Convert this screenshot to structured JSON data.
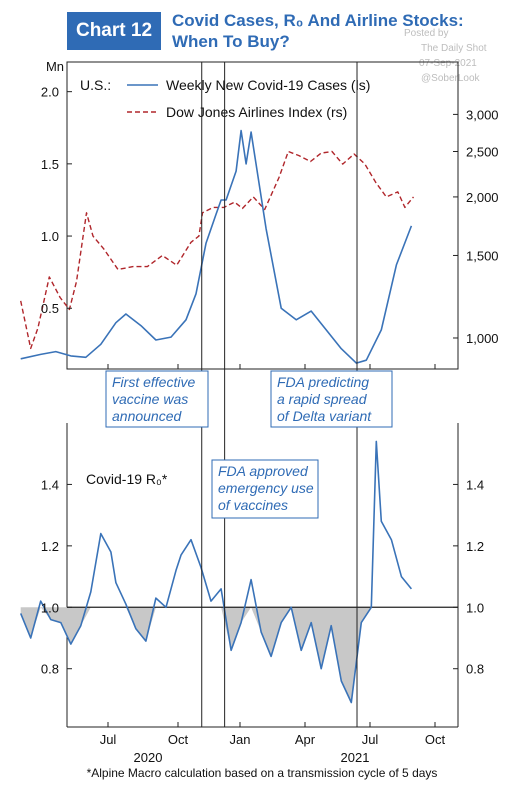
{
  "header": {
    "chart_number": "Chart 12",
    "title_line1": "Covid Cases, R₀ And Airline Stocks:",
    "title_line2": "When To Buy?"
  },
  "watermark": {
    "posted_by": "Posted by",
    "source": "The Daily Shot",
    "date": "07-Sep-2021",
    "handle": "@SoberLook"
  },
  "footnote": "*Alpine Macro calculation based on a transmission cycle of 5 days",
  "annotations": [
    {
      "id": "vaccine",
      "lines": [
        "First effective",
        "vaccine was",
        "announced"
      ],
      "date": "2020-11-09"
    },
    {
      "id": "eua",
      "lines": [
        "FDA approved",
        "emergency use",
        "of vaccines"
      ],
      "date": "2020-12-11"
    },
    {
      "id": "delta",
      "lines": [
        "FDA predicting",
        "a rapid spread",
        "of Delta variant"
      ],
      "date": "2021-06-14"
    }
  ],
  "colors": {
    "brand": "#2f6bb5",
    "cases": "#3a73b8",
    "airlines": "#b0262b",
    "ro": "#3a73b8",
    "ro_fill": "#c8c8c8"
  },
  "chart_data": [
    {
      "type": "line",
      "title": "",
      "ylabel_left": "Mn",
      "legend_prefix": "U.S.:",
      "legend_position": "top-left",
      "x_ticks": [
        "Jul",
        "Oct",
        "Jan",
        "Apr",
        "Jul",
        "Oct"
      ],
      "x_year_labels": [
        "2020",
        "2021"
      ],
      "y_left_ticks": [
        "0.5",
        "1.0",
        "1.5",
        "2.0"
      ],
      "y_left_lim": [
        0.1,
        2.15
      ],
      "y_right_ticks": [
        "1,000",
        "1,500",
        "2,000",
        "2,500",
        "3,000"
      ],
      "y_right_scale": "log",
      "y_right_lim": [
        880,
        3300
      ],
      "series": [
        {
          "name": "Weekly New Covid-19 Cases (ls)",
          "axis": "left",
          "style": "solid",
          "x": [
            "2020-03-01",
            "2020-03-29",
            "2020-04-19",
            "2020-05-10",
            "2020-05-31",
            "2020-06-21",
            "2020-07-12",
            "2020-07-26",
            "2020-08-16",
            "2020-09-06",
            "2020-09-27",
            "2020-10-18",
            "2020-11-01",
            "2020-11-15",
            "2020-11-29",
            "2020-12-06",
            "2020-12-13",
            "2020-12-27",
            "2021-01-03",
            "2021-01-10",
            "2021-01-17",
            "2021-02-07",
            "2021-02-28",
            "2021-03-21",
            "2021-04-11",
            "2021-05-02",
            "2021-05-23",
            "2021-06-13",
            "2021-06-27",
            "2021-07-18",
            "2021-08-08",
            "2021-08-22",
            "2021-08-29"
          ],
          "values": [
            0.15,
            0.18,
            0.2,
            0.17,
            0.16,
            0.25,
            0.4,
            0.46,
            0.38,
            0.28,
            0.3,
            0.42,
            0.6,
            0.95,
            1.15,
            1.25,
            1.25,
            1.45,
            1.73,
            1.5,
            1.72,
            1.05,
            0.5,
            0.42,
            0.48,
            0.35,
            0.22,
            0.12,
            0.14,
            0.35,
            0.8,
            0.98,
            1.07
          ]
        },
        {
          "name": "Dow Jones Airlines Index (rs)",
          "axis": "right",
          "style": "dashed",
          "x": [
            "2020-03-01",
            "2020-03-15",
            "2020-03-25",
            "2020-04-10",
            "2020-04-25",
            "2020-05-08",
            "2020-05-18",
            "2020-06-01",
            "2020-06-10",
            "2020-06-25",
            "2020-07-15",
            "2020-08-05",
            "2020-08-25",
            "2020-09-15",
            "2020-10-05",
            "2020-10-25",
            "2020-11-05",
            "2020-11-10",
            "2020-11-25",
            "2020-12-10",
            "2020-12-25",
            "2021-01-05",
            "2021-01-20",
            "2021-02-05",
            "2021-02-25",
            "2021-03-10",
            "2021-03-25",
            "2021-04-10",
            "2021-04-25",
            "2021-05-10",
            "2021-05-25",
            "2021-06-10",
            "2021-06-25",
            "2021-07-10",
            "2021-07-25",
            "2021-08-10",
            "2021-08-20",
            "2021-09-01"
          ],
          "values": [
            1200,
            950,
            1050,
            1350,
            1220,
            1150,
            1320,
            1850,
            1650,
            1550,
            1400,
            1420,
            1420,
            1500,
            1430,
            1600,
            1650,
            1850,
            1900,
            1900,
            1950,
            1890,
            2000,
            1880,
            2200,
            2500,
            2450,
            2380,
            2480,
            2500,
            2350,
            2470,
            2350,
            2150,
            2000,
            2050,
            1900,
            2000
          ]
        }
      ]
    },
    {
      "type": "area",
      "title": "",
      "series_label": "Covid-19 R₀*",
      "baseline": 1.0,
      "fill_below_baseline": true,
      "x_ticks": [
        "Jul",
        "Oct",
        "Jan",
        "Apr",
        "Jul",
        "Oct"
      ],
      "x_year_labels": [
        "2020",
        "2021"
      ],
      "y_ticks": [
        "0.8",
        "1.0",
        "1.2",
        "1.4"
      ],
      "ylim": [
        0.62,
        1.6
      ],
      "series": [
        {
          "name": "Covid-19 R₀*",
          "x": [
            "2020-03-01",
            "2020-03-15",
            "2020-03-29",
            "2020-04-12",
            "2020-04-26",
            "2020-05-10",
            "2020-05-24",
            "2020-06-07",
            "2020-06-21",
            "2020-07-05",
            "2020-07-12",
            "2020-07-26",
            "2020-08-09",
            "2020-08-23",
            "2020-09-06",
            "2020-09-20",
            "2020-10-04",
            "2020-10-11",
            "2020-10-25",
            "2020-11-08",
            "2020-11-22",
            "2020-12-06",
            "2020-12-20",
            "2021-01-03",
            "2021-01-17",
            "2021-01-31",
            "2021-02-14",
            "2021-02-28",
            "2021-03-14",
            "2021-03-28",
            "2021-04-11",
            "2021-04-25",
            "2021-05-09",
            "2021-05-23",
            "2021-06-06",
            "2021-06-20",
            "2021-07-04",
            "2021-07-11",
            "2021-07-18",
            "2021-08-01",
            "2021-08-15",
            "2021-08-29"
          ],
          "values": [
            0.98,
            0.9,
            1.02,
            0.96,
            0.95,
            0.88,
            0.94,
            1.05,
            1.24,
            1.18,
            1.08,
            1.01,
            0.93,
            0.89,
            1.03,
            1.0,
            1.12,
            1.17,
            1.22,
            1.13,
            1.02,
            1.06,
            0.86,
            0.95,
            1.09,
            0.92,
            0.84,
            0.95,
            1.0,
            0.86,
            0.95,
            0.8,
            0.94,
            0.76,
            0.69,
            0.95,
            1.0,
            1.54,
            1.28,
            1.22,
            1.1,
            1.06
          ]
        }
      ]
    }
  ]
}
